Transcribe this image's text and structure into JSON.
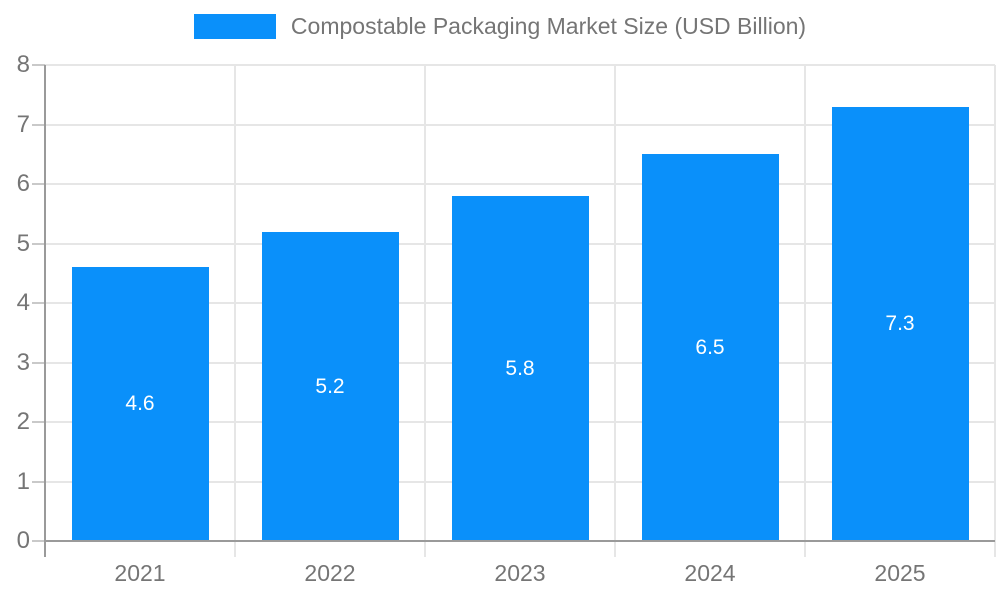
{
  "legend": {
    "label": "Compostable Packaging Market Size (USD Billion)"
  },
  "colors": {
    "bar": "#0a90fa",
    "axis": "#9a9a9a",
    "grid": "#e6e6e6",
    "label_text": "#757575",
    "bar_label_text": "#ffffff"
  },
  "chart_data": {
    "type": "bar",
    "categories": [
      "2021",
      "2022",
      "2023",
      "2024",
      "2025"
    ],
    "values": [
      4.6,
      5.2,
      5.8,
      6.5,
      7.3
    ],
    "series_name": "Compostable Packaging Market Size (USD Billion)",
    "title": "Compostable Packaging Market Size (USD Billion)",
    "xlabel": "",
    "ylabel": "",
    "ylim": [
      0,
      8
    ],
    "yticks": [
      0,
      1,
      2,
      3,
      4,
      5,
      6,
      7,
      8
    ],
    "grid": true,
    "legend_position": "top-center",
    "data_labels_position": "center"
  }
}
